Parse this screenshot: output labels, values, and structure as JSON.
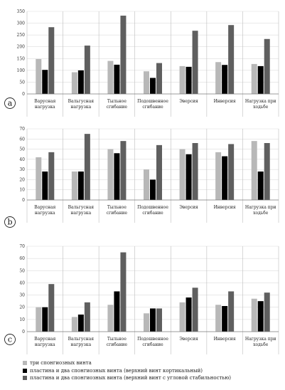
{
  "colors": {
    "series": [
      "#b8b8b8",
      "#000000",
      "#5f5f5f"
    ],
    "axis": "#7a7a7a",
    "grid": "#dcdcdc",
    "divider": "#bdbdbd"
  },
  "legend": [
    "три спонгиозных винта",
    "пластина и два спонгиозных винта (верхний винт кортикальный)",
    "пластина и два спонгиозных винта (верхний винт с угловой стабильностью)"
  ],
  "chart_data": [
    {
      "type": "bar",
      "panel_label": "a",
      "categories": [
        [
          "Варусная",
          "нагрузка"
        ],
        [
          "Вальгусная",
          "нагрузка"
        ],
        [
          "Тыльное",
          "сгибание"
        ],
        [
          "Подошвенное",
          "сгибание"
        ],
        [
          "Эверсия"
        ],
        [
          "Инверсия"
        ],
        [
          "Нагрузка при",
          "ходьбе"
        ]
      ],
      "series": [
        {
          "values": [
            148,
            92,
            140,
            96,
            118,
            135,
            127
          ]
        },
        {
          "values": [
            102,
            100,
            124,
            68,
            115,
            123,
            118
          ]
        },
        {
          "values": [
            283,
            205,
            332,
            131,
            268,
            292,
            233
          ]
        }
      ],
      "ylim": [
        0,
        350
      ],
      "yticks": [
        0,
        50,
        100,
        150,
        200,
        250,
        300,
        350
      ],
      "grid": true
    },
    {
      "type": "bar",
      "panel_label": "b",
      "categories": [
        [
          "Варусная",
          "нагрузка"
        ],
        [
          "Вальгусная",
          "нагрузка"
        ],
        [
          "Тыльное",
          "сгибание"
        ],
        [
          "Подошвенное",
          "сгибание"
        ],
        [
          "Эверсия"
        ],
        [
          "Инверсия"
        ],
        [
          "Нагрузка при",
          "ходьбе"
        ]
      ],
      "series": [
        {
          "values": [
            42,
            28,
            50,
            30,
            50,
            47,
            58
          ]
        },
        {
          "values": [
            28,
            28,
            46,
            20,
            45,
            43,
            28
          ]
        },
        {
          "values": [
            47,
            65,
            58,
            54,
            56,
            55,
            56
          ]
        }
      ],
      "ylim": [
        0,
        70
      ],
      "yticks": [
        0,
        10,
        20,
        30,
        40,
        50,
        60,
        70
      ],
      "grid": true
    },
    {
      "type": "bar",
      "panel_label": "c",
      "categories": [
        [
          "Варусная",
          "нагрузка"
        ],
        [
          "Вальгусная",
          "нагрузка"
        ],
        [
          "Тыльное",
          "сгибание"
        ],
        [
          "Подошвенное",
          "сгибание"
        ],
        [
          "Эверсия"
        ],
        [
          "Инверсия"
        ],
        [
          "Нагрузка при",
          "ходьбе"
        ]
      ],
      "series": [
        {
          "values": [
            20,
            12,
            22,
            15,
            24,
            22,
            27
          ]
        },
        {
          "values": [
            20,
            14,
            33,
            19,
            28,
            21,
            25
          ]
        },
        {
          "values": [
            39,
            24,
            65,
            19,
            36,
            33,
            32
          ]
        }
      ],
      "ylim": [
        0,
        70
      ],
      "yticks": [
        0,
        10,
        20,
        30,
        40,
        50,
        60,
        70
      ],
      "grid": true
    }
  ]
}
